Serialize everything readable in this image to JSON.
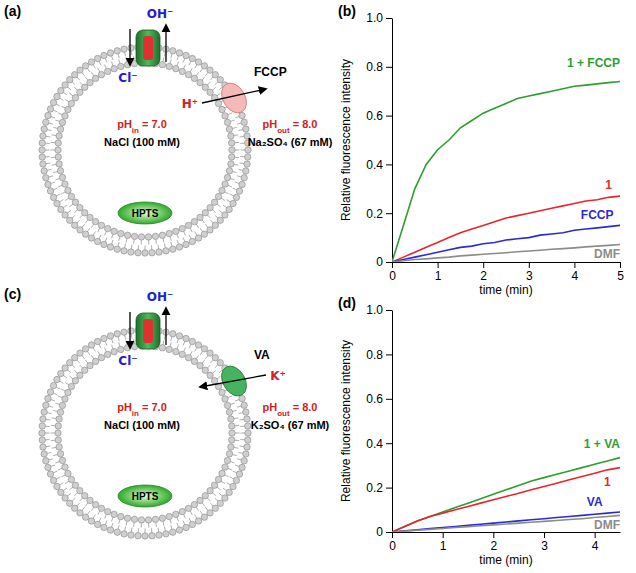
{
  "chart_data": [
    {
      "type": "line",
      "panel_label": "(b)",
      "x_label": "time (min)",
      "y_label": "Relative fluorescence intensity",
      "x": [
        0,
        0.25,
        0.5,
        0.75,
        1,
        1.25,
        1.5,
        1.75,
        2,
        2.25,
        2.5,
        2.75,
        3,
        3.25,
        3.5,
        3.75,
        4,
        4.25,
        4.5,
        4.75,
        5
      ],
      "xlim": [
        0,
        5
      ],
      "xticks": [
        0,
        1,
        2,
        3,
        4,
        5
      ],
      "ylim": [
        0,
        1
      ],
      "yticks": [
        0,
        0.2,
        0.4,
        0.6,
        0.8,
        {
          "value": 1,
          "label": "1.0"
        }
      ],
      "series": [
        {
          "name": "1 + FCCP",
          "color": "#2e9e2e",
          "values": [
            0,
            0.15,
            0.3,
            0.4,
            0.46,
            0.5,
            0.55,
            0.58,
            0.61,
            0.63,
            0.65,
            0.67,
            0.68,
            0.69,
            0.7,
            0.71,
            0.72,
            0.725,
            0.73,
            0.735,
            0.74
          ]
        },
        {
          "name": "1",
          "color": "#e8262a",
          "values": [
            0,
            0.02,
            0.04,
            0.06,
            0.08,
            0.1,
            0.12,
            0.135,
            0.15,
            0.165,
            0.18,
            0.19,
            0.2,
            0.21,
            0.22,
            0.23,
            0.24,
            0.25,
            0.255,
            0.265,
            0.27
          ]
        },
        {
          "name": "FCCP",
          "color": "#2b2bd4",
          "values": [
            0,
            0.01,
            0.02,
            0.03,
            0.04,
            0.05,
            0.06,
            0.065,
            0.075,
            0.08,
            0.09,
            0.095,
            0.1,
            0.11,
            0.115,
            0.12,
            0.13,
            0.135,
            0.14,
            0.145,
            0.15
          ]
        },
        {
          "name": "DMF",
          "color": "#8c8c8c",
          "values": [
            0,
            0.005,
            0.01,
            0.013,
            0.017,
            0.02,
            0.025,
            0.028,
            0.032,
            0.035,
            0.038,
            0.042,
            0.045,
            0.048,
            0.052,
            0.055,
            0.058,
            0.062,
            0.065,
            0.068,
            0.072
          ]
        }
      ]
    },
    {
      "type": "line",
      "panel_label": "(d)",
      "x_label": "time (min)",
      "y_label": "Relative fluorescence intensity",
      "x": [
        0,
        0.25,
        0.5,
        0.75,
        1,
        1.25,
        1.5,
        1.75,
        2,
        2.25,
        2.5,
        2.75,
        3,
        3.25,
        3.5,
        3.75,
        4,
        4.25,
        4.5
      ],
      "xlim": [
        0,
        4.5
      ],
      "xticks": [
        0,
        1,
        2,
        3,
        4
      ],
      "ylim": [
        0,
        1
      ],
      "yticks": [
        0,
        0.2,
        0.4,
        0.6,
        0.8,
        {
          "value": 1,
          "label": "1.0"
        }
      ],
      "series": [
        {
          "name": "1 + VA",
          "color": "#2e9e2e",
          "values": [
            0,
            0.025,
            0.05,
            0.07,
            0.09,
            0.11,
            0.13,
            0.15,
            0.17,
            0.19,
            0.21,
            0.23,
            0.245,
            0.26,
            0.275,
            0.29,
            0.305,
            0.32,
            0.335
          ]
        },
        {
          "name": "1",
          "color": "#e8262a",
          "values": [
            0,
            0.025,
            0.05,
            0.07,
            0.085,
            0.1,
            0.115,
            0.13,
            0.145,
            0.16,
            0.175,
            0.19,
            0.205,
            0.22,
            0.235,
            0.25,
            0.265,
            0.28,
            0.29
          ]
        },
        {
          "name": "VA",
          "color": "#2b2bd4",
          "values": [
            0,
            0.005,
            0.01,
            0.015,
            0.02,
            0.025,
            0.03,
            0.035,
            0.04,
            0.045,
            0.05,
            0.055,
            0.06,
            0.065,
            0.07,
            0.075,
            0.08,
            0.085,
            0.09
          ]
        },
        {
          "name": "DMF",
          "color": "#8c8c8c",
          "values": [
            0,
            0.004,
            0.008,
            0.012,
            0.016,
            0.02,
            0.024,
            0.028,
            0.032,
            0.036,
            0.04,
            0.044,
            0.048,
            0.052,
            0.056,
            0.06,
            0.065,
            0.07,
            0.075
          ]
        }
      ]
    }
  ],
  "diagrams": [
    {
      "panel_label": "(a)",
      "ion_out": "OH⁻",
      "ion_in": "Cl⁻",
      "carrier": "FCCP",
      "cation": "H⁺",
      "inside_ph": [
        "pH",
        "in",
        " = 7.0"
      ],
      "inside_salt": "NaCl (100 mM)",
      "outside_ph": [
        "pH",
        "out",
        " = 8.0"
      ],
      "outside_salt": "Na₂SO₄ (67 mM)",
      "dye": "HPTS"
    },
    {
      "panel_label": "(c)",
      "ion_out": "OH⁻",
      "ion_in": "Cl⁻",
      "carrier": "VA",
      "cation": "K⁺",
      "inside_ph": [
        "pH",
        "in",
        " = 7.0"
      ],
      "inside_salt": "NaCl (100 mM)",
      "outside_ph": [
        "pH",
        "out",
        " = 8.0"
      ],
      "outside_salt": "K₂SO₄ (67 mM)",
      "dye": "HPTS"
    }
  ]
}
